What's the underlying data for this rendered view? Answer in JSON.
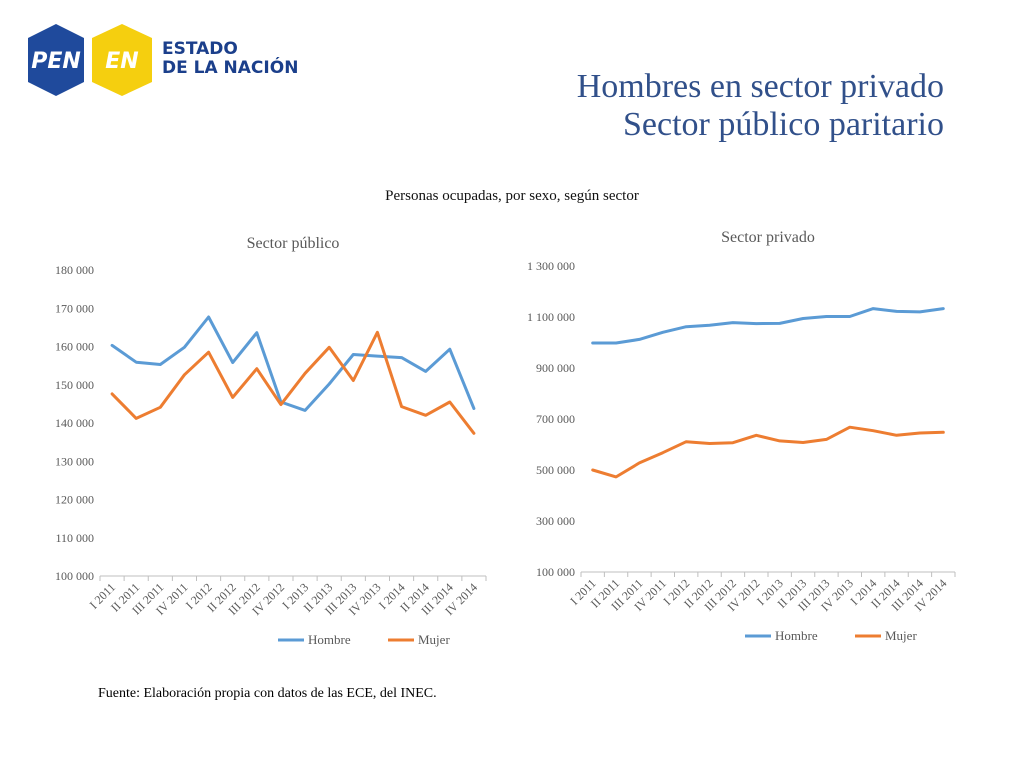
{
  "logo": {
    "badge1": "PEN",
    "badge2": "EN",
    "line1": "ESTADO",
    "line2": "DE LA NACIÓN",
    "colors": {
      "blue": "#1f4a9c",
      "yellow": "#f5cf0f"
    }
  },
  "title": {
    "line1": "Hombres en sector privado",
    "line2": "Sector público paritario"
  },
  "caption": "Personas ocupadas, por sexo, según sector",
  "source": "Fuente: Elaboración propia con datos de las ECE, del INEC.",
  "chart_data": [
    {
      "type": "line",
      "title": "Sector público",
      "categories": [
        "I 2011",
        "II 2011",
        "III 2011",
        "IV 2011",
        "I 2012",
        "II 2012",
        "III 2012",
        "IV 2012",
        "I 2013",
        "II 2013",
        "III 2013",
        "IV 2013",
        "I 2014",
        "II 2014",
        "III 2014",
        "IV 2014"
      ],
      "ylim": [
        100000,
        180000
      ],
      "yticks": [
        100000,
        110000,
        120000,
        130000,
        140000,
        150000,
        160000,
        170000,
        180000
      ],
      "ytick_labels": [
        "100 000",
        "110 000",
        "120 000",
        "130 000",
        "140 000",
        "150 000",
        "160 000",
        "170 000",
        "180 000"
      ],
      "series": [
        {
          "name": "Hombre",
          "color": "#5b9bd5",
          "values": [
            160300,
            155900,
            155300,
            159800,
            167700,
            155800,
            163600,
            145500,
            143300,
            150200,
            157900,
            157500,
            157100,
            153500,
            159300,
            143800
          ]
        },
        {
          "name": "Mujer",
          "color": "#ed7d31",
          "values": [
            147600,
            141200,
            144100,
            152600,
            158500,
            146700,
            154200,
            144800,
            153000,
            159800,
            151100,
            163700,
            144300,
            142000,
            145500,
            137300
          ]
        }
      ],
      "legend": "bottom",
      "grid": false
    },
    {
      "type": "line",
      "title": "Sector privado",
      "categories": [
        "I 2011",
        "II 2011",
        "III 2011",
        "IV 2011",
        "I 2012",
        "II 2012",
        "III 2012",
        "IV 2012",
        "I 2013",
        "II 2013",
        "III 2013",
        "IV 2013",
        "I 2014",
        "II 2014",
        "III 2014",
        "IV 2014"
      ],
      "ylim": [
        100000,
        1300000
      ],
      "yticks": [
        100000,
        300000,
        500000,
        700000,
        900000,
        1100000,
        1300000
      ],
      "ytick_labels": [
        "100 000",
        "300 000",
        "500 000",
        "700 000",
        "900 000",
        "1 100 000",
        "1 300 000"
      ],
      "series": [
        {
          "name": "Hombre",
          "color": "#5b9bd5",
          "values": [
            998000,
            998000,
            1012000,
            1040000,
            1062000,
            1068000,
            1078000,
            1074000,
            1075000,
            1094000,
            1102000,
            1102000,
            1133000,
            1122000,
            1120000,
            1133000
          ]
        },
        {
          "name": "Mujer",
          "color": "#ed7d31",
          "values": [
            500000,
            473000,
            528000,
            568000,
            611000,
            604000,
            607000,
            636000,
            614000,
            608000,
            620000,
            668000,
            654000,
            636000,
            645000,
            648000
          ]
        }
      ],
      "legend": "bottom",
      "grid": false
    }
  ]
}
